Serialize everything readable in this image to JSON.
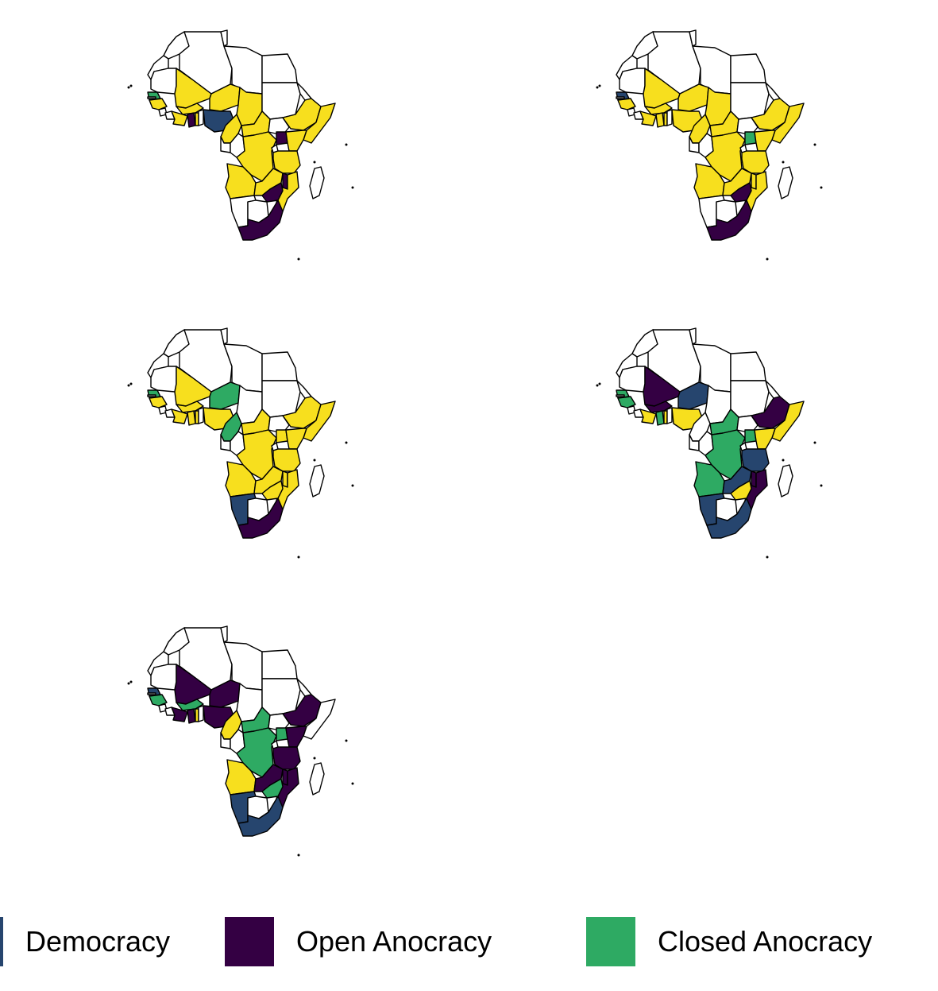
{
  "legend": {
    "items": [
      {
        "label": "Democracy",
        "color": "#26456e"
      },
      {
        "label": "Open Anocracy",
        "color": "#340043"
      },
      {
        "label": "Closed Anocracy",
        "color": "#2eaa63"
      }
    ]
  },
  "colors": {
    "autocracy": "#f7df1e",
    "no_data": "#ffffff",
    "border": "#000000"
  },
  "panels": [
    {
      "name": "panel-1",
      "regions": {
        "senegal": "closed",
        "guinea": "autocracy",
        "mali": "autocracy",
        "niger": "autocracy",
        "burkina": "autocracy",
        "ivory": "autocracy",
        "ghana": "open",
        "togo": "autocracy",
        "nigeria": "democracy",
        "cameroon": "autocracy",
        "chad": "autocracy",
        "car": "autocracy",
        "ethiopia": "autocracy",
        "somalia": "autocracy",
        "drc": "autocracy",
        "angola": "autocracy",
        "zambia": "autocracy",
        "tanzania": "autocracy",
        "uganda": "open",
        "kenya": "autocracy",
        "mozambique": "autocracy",
        "malawi": "open",
        "zimbabwe": "open",
        "namibia": "none",
        "botswana": "none",
        "south_africa": "open"
      }
    },
    {
      "name": "panel-2",
      "regions": {
        "senegal": "democracy",
        "guinea": "autocracy",
        "mali": "autocracy",
        "niger": "autocracy",
        "burkina": "autocracy",
        "ivory": "autocracy",
        "ghana": "autocracy",
        "togo": "autocracy",
        "nigeria": "autocracy",
        "cameroon": "autocracy",
        "chad": "autocracy",
        "car": "autocracy",
        "ethiopia": "autocracy",
        "somalia": "autocracy",
        "drc": "autocracy",
        "angola": "autocracy",
        "zambia": "autocracy",
        "tanzania": "autocracy",
        "uganda": "closed",
        "kenya": "autocracy",
        "mozambique": "autocracy",
        "malawi": "autocracy",
        "zimbabwe": "open",
        "namibia": "none",
        "botswana": "none",
        "south_africa": "open"
      }
    },
    {
      "name": "panel-3",
      "regions": {
        "senegal": "closed",
        "guinea": "autocracy",
        "mali": "autocracy",
        "niger": "closed",
        "burkina": "autocracy",
        "ivory": "autocracy",
        "ghana": "autocracy",
        "togo": "autocracy",
        "nigeria": "autocracy",
        "cameroon": "closed",
        "chad": "none",
        "car": "autocracy",
        "ethiopia": "autocracy",
        "somalia": "autocracy",
        "drc": "autocracy",
        "angola": "autocracy",
        "zambia": "autocracy",
        "tanzania": "autocracy",
        "uganda": "autocracy",
        "kenya": "autocracy",
        "mozambique": "autocracy",
        "malawi": "autocracy",
        "zimbabwe": "autocracy",
        "namibia": "democracy",
        "botswana": "none",
        "south_africa": "open"
      }
    },
    {
      "name": "panel-4",
      "regions": {
        "senegal": "closed",
        "guinea": "closed",
        "mali": "open",
        "niger": "democracy",
        "burkina": "open",
        "ivory": "autocracy",
        "ghana": "closed",
        "togo": "autocracy",
        "nigeria": "autocracy",
        "cameroon": "none",
        "chad": "none",
        "car": "closed",
        "ethiopia": "open",
        "somalia": "autocracy",
        "drc": "closed",
        "angola": "closed",
        "zambia": "democracy",
        "tanzania": "democracy",
        "uganda": "closed",
        "kenya": "autocracy",
        "mozambique": "open",
        "malawi": "open",
        "zimbabwe": "autocracy",
        "namibia": "democracy",
        "botswana": "none",
        "south_africa": "democracy"
      }
    },
    {
      "name": "panel-5",
      "regions": {
        "senegal": "democracy",
        "guinea": "closed",
        "mali": "open",
        "niger": "open",
        "burkina": "closed",
        "ivory": "open",
        "ghana": "open",
        "togo": "autocracy",
        "nigeria": "open",
        "cameroon": "autocracy",
        "chad": "none",
        "car": "closed",
        "ethiopia": "open",
        "somalia": "none",
        "drc": "closed",
        "angola": "autocracy",
        "zambia": "open",
        "tanzania": "open",
        "uganda": "closed",
        "kenya": "open",
        "mozambique": "open",
        "malawi": "open",
        "zimbabwe": "closed",
        "namibia": "democracy",
        "botswana": "none",
        "south_africa": "democracy"
      }
    }
  ]
}
